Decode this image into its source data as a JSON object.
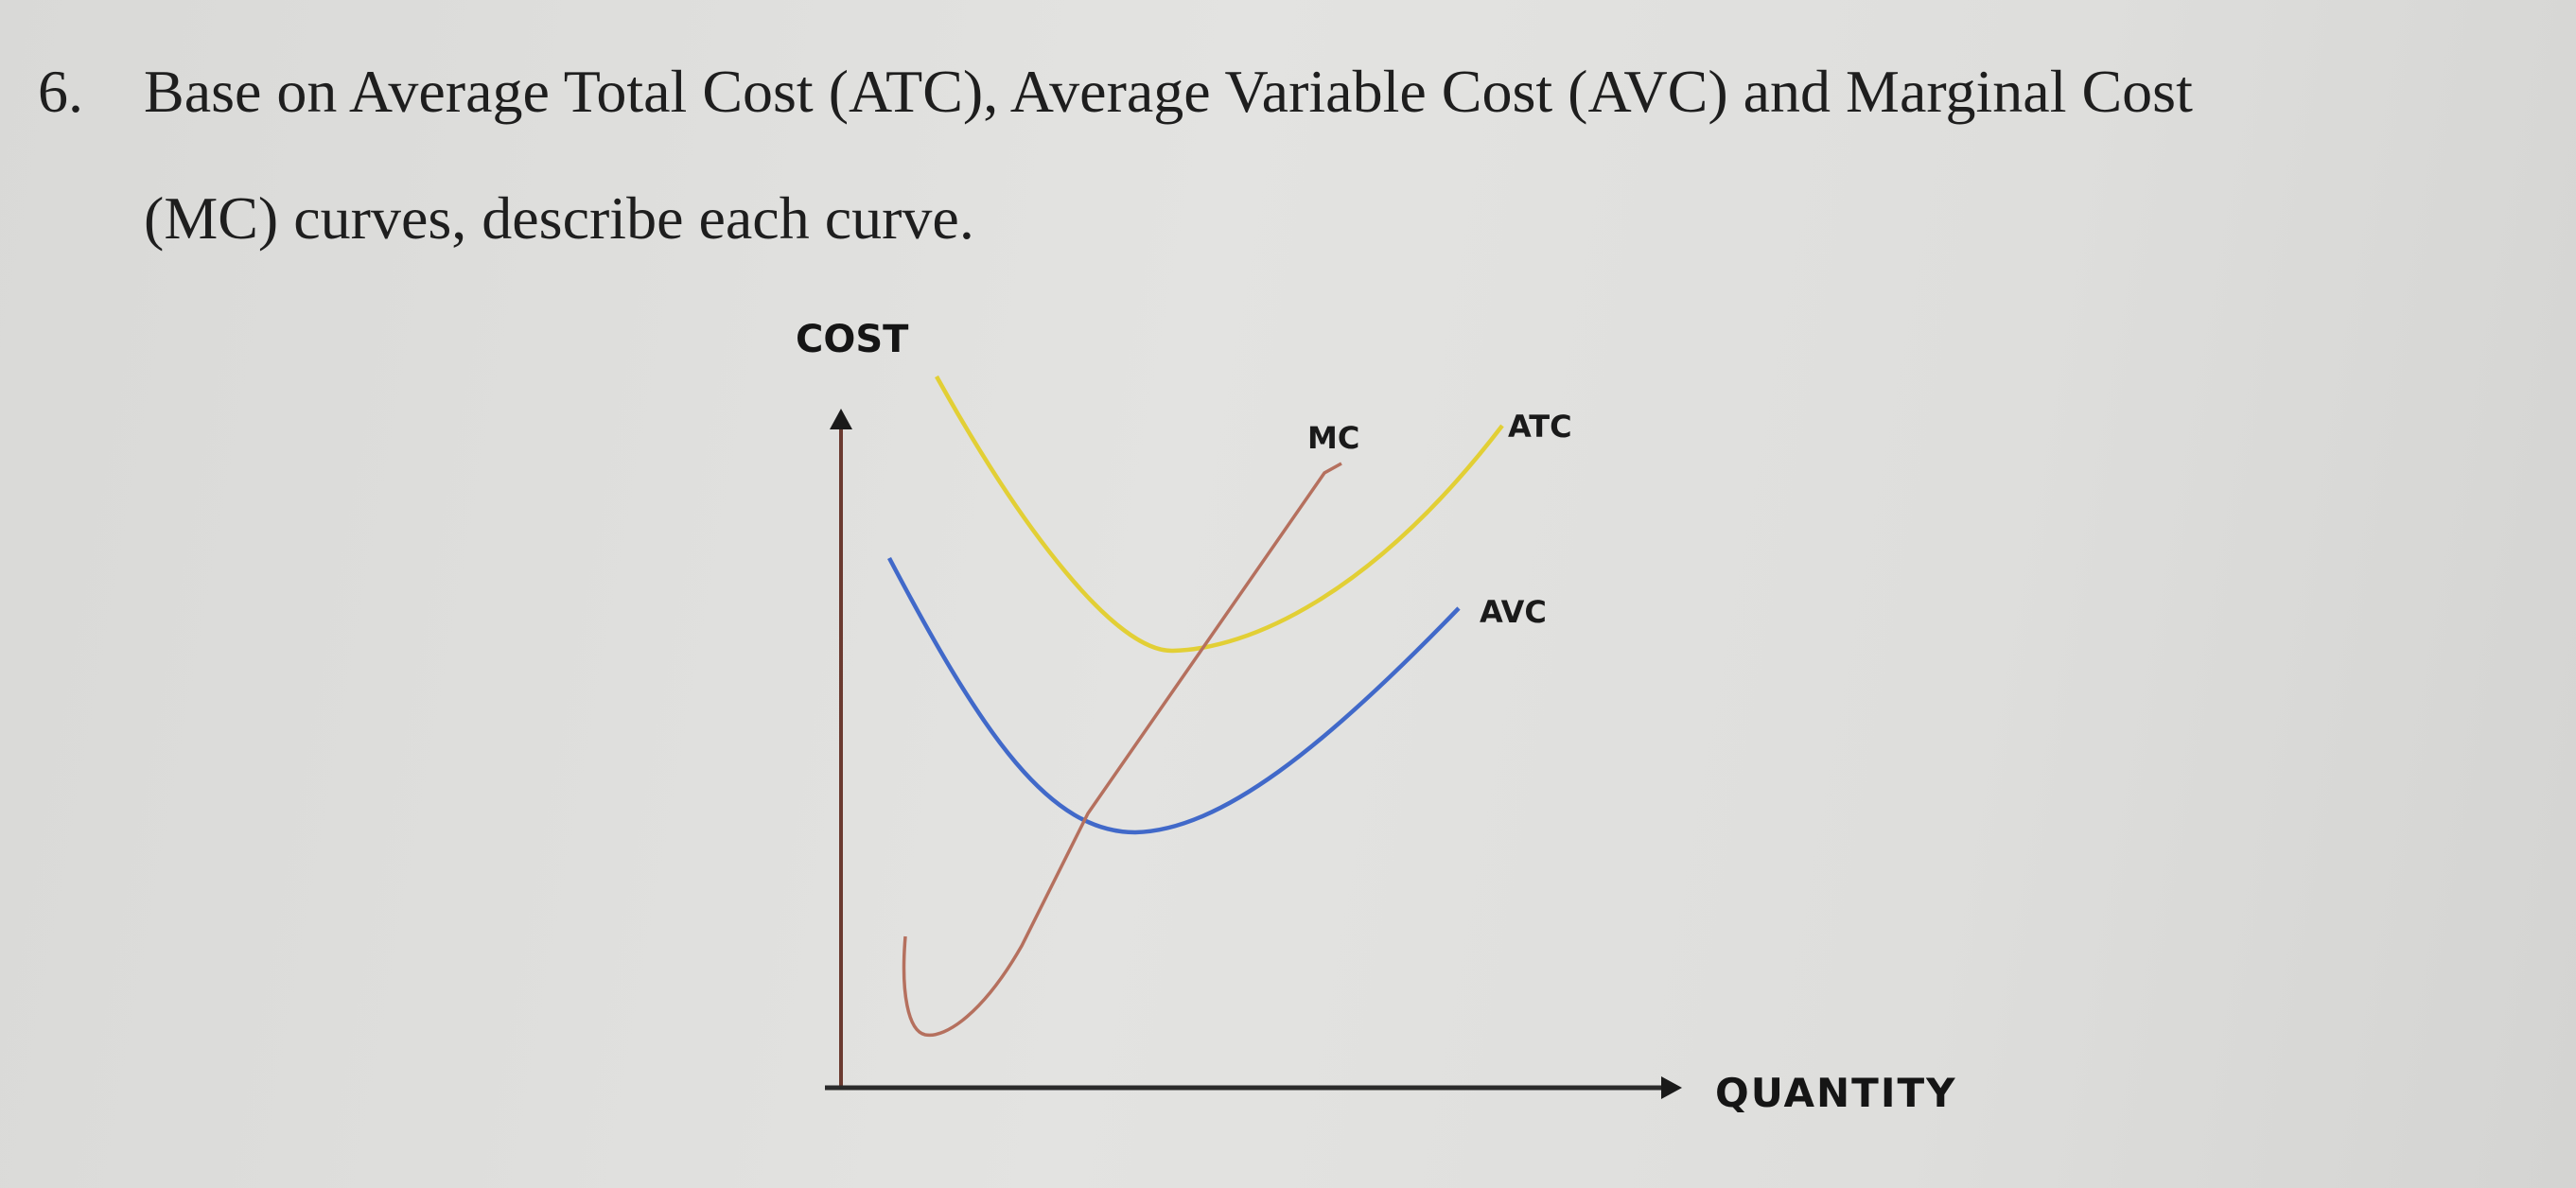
{
  "question": {
    "number": "6.",
    "line1": "Base on Average Total Cost (ATC), Average Variable Cost (AVC) and Marginal Cost",
    "line2": "(MC) curves, describe each curve."
  },
  "diagram": {
    "y_axis_label": "COST",
    "x_axis_label": "QUANTITY",
    "curves": [
      {
        "key": "mc",
        "label": "MC",
        "color": "#b5705e"
      },
      {
        "key": "atc",
        "label": "ATC",
        "color": "#e2cf35"
      },
      {
        "key": "avc",
        "label": "AVC",
        "color": "#4169c9"
      }
    ],
    "axis_color": "#6b3a30"
  }
}
